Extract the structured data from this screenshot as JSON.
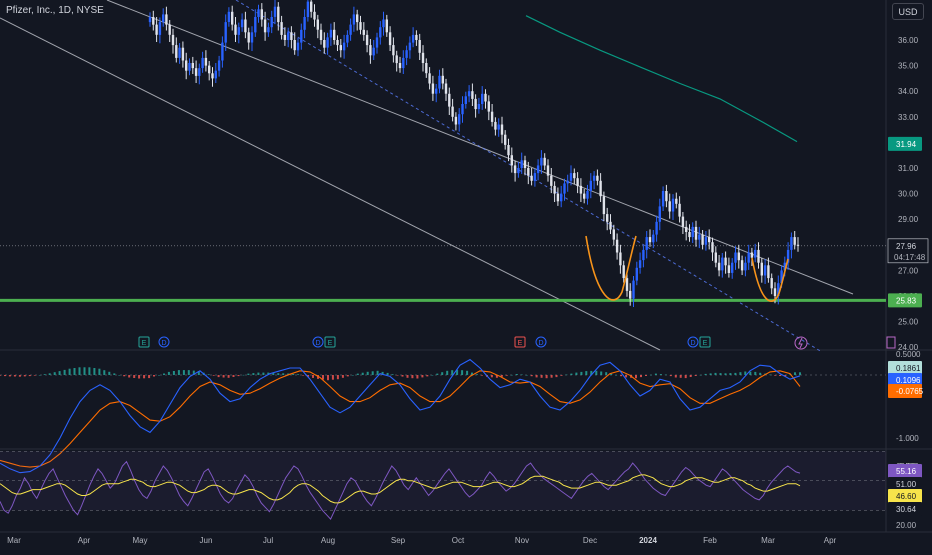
{
  "header": {
    "symbol_line": "Pfizer, Inc., 1D, NYSE",
    "currency": "USD"
  },
  "colors": {
    "bull": "#2962ff",
    "bear": "#e0e3eb",
    "channel": "#d1d4dc",
    "ma200": "#089981",
    "support": "#4caf50",
    "cup": "#f7931a",
    "macd": "#2962ff",
    "signal": "#ff6d00",
    "hist_pos": "#26a69a",
    "hist_pos_light": "#b2dfdb",
    "hist_neg": "#ef5350",
    "hist_neg_light": "#ffcdd2",
    "rsi": "#7e57c2",
    "rsi_ma": "#f7e44b"
  },
  "chart_data": [
    {
      "type": "candlestick",
      "title": "Pfizer, Inc., 1D, NYSE",
      "ylim": [
        24.0,
        36.8
      ],
      "y_ticks": [
        36,
        35,
        34,
        33,
        32,
        31,
        30,
        29,
        28,
        27,
        26,
        25,
        24
      ],
      "y_tick_labels": [
        "36.00",
        "35.00",
        "34.00",
        "33.00",
        "32.00",
        "31.00",
        "30.00",
        "29.00",
        "28.00",
        "27.00",
        "26.00",
        "25.00",
        "24.00"
      ],
      "x_tick_labels": [
        "Mar",
        "Apr",
        "May",
        "Jun",
        "Jul",
        "Aug",
        "Sep",
        "Oct",
        "Nov",
        "Dec",
        "2024",
        "Feb",
        "Mar",
        "Apr"
      ],
      "last_price": "27.96",
      "countdown": "04:17:48",
      "ma200_label": "31.94",
      "support_level": 25.83,
      "support_label": "25.83",
      "closes": [
        36.9,
        36.6,
        36.2,
        36.7,
        37.0,
        36.6,
        36.2,
        35.8,
        35.3,
        35.7,
        35.2,
        34.8,
        35.1,
        34.9,
        34.6,
        34.9,
        35.3,
        35.0,
        34.7,
        34.5,
        34.8,
        35.2,
        35.9,
        36.7,
        37.1,
        36.6,
        36.2,
        36.5,
        36.8,
        36.3,
        35.9,
        36.3,
        36.9,
        37.2,
        36.8,
        36.3,
        36.5,
        36.9,
        37.3,
        36.7,
        36.2,
        36.0,
        36.3,
        36.0,
        35.6,
        35.9,
        36.4,
        36.9,
        37.5,
        37.1,
        36.8,
        36.4,
        36.0,
        35.7,
        36.1,
        36.4,
        36.0,
        35.8,
        35.6,
        35.9,
        36.2,
        36.6,
        37.0,
        36.7,
        36.4,
        36.2,
        35.8,
        35.4,
        35.7,
        36.1,
        36.5,
        36.8,
        36.3,
        35.8,
        35.4,
        35.1,
        34.9,
        35.3,
        35.6,
        35.9,
        36.2,
        36.0,
        35.5,
        35.1,
        34.7,
        34.3,
        33.9,
        34.1,
        34.6,
        34.3,
        33.9,
        33.4,
        33.0,
        32.7,
        33.1,
        33.5,
        33.8,
        34.0,
        33.7,
        33.3,
        33.5,
        33.9,
        33.6,
        33.2,
        32.8,
        32.5,
        32.7,
        32.3,
        31.9,
        31.5,
        31.1,
        30.8,
        31.0,
        31.3,
        31.0,
        30.7,
        30.5,
        30.8,
        31.1,
        31.4,
        31.1,
        30.7,
        30.3,
        30.0,
        29.7,
        30.0,
        30.4,
        30.5,
        30.8,
        30.6,
        30.3,
        30.0,
        29.8,
        30.1,
        30.5,
        30.7,
        30.5,
        29.9,
        29.2,
        28.9,
        28.6,
        28.2,
        27.7,
        27.2,
        26.7,
        26.2,
        25.9,
        26.6,
        27.1,
        27.4,
        27.8,
        28.3,
        28.1,
        28.4,
        28.9,
        29.5,
        30.1,
        29.7,
        29.3,
        29.8,
        29.6,
        29.1,
        28.7,
        28.5,
        28.3,
        28.7,
        28.2,
        28.4,
        28.0,
        28.3,
        28.1,
        27.7,
        27.3,
        27.0,
        27.5,
        27.2,
        26.9,
        27.3,
        27.7,
        27.4,
        27.0,
        27.3,
        27.7,
        27.5,
        27.8,
        27.3,
        26.8,
        27.2,
        26.7,
        26.3,
        26.0,
        26.5,
        27.0,
        27.3,
        27.8,
        28.3,
        28.0,
        27.96
      ],
      "ma200": [
        {
          "x": 526,
          "price": 36.95
        },
        {
          "x": 560,
          "price": 36.3
        },
        {
          "x": 600,
          "price": 35.6
        },
        {
          "x": 640,
          "price": 34.95
        },
        {
          "x": 680,
          "price": 34.3
        },
        {
          "x": 720,
          "price": 33.7
        },
        {
          "x": 760,
          "price": 32.85
        },
        {
          "x": 797,
          "price": 32.03
        }
      ],
      "events": [
        {
          "letter": "E",
          "kind": "earnings"
        },
        {
          "letter": "D",
          "kind": "dividend"
        },
        {
          "letter": "D",
          "kind": "dividend"
        },
        {
          "letter": "E",
          "kind": "earnings"
        },
        {
          "letter": "E",
          "kind": "earnings"
        },
        {
          "letter": "D",
          "kind": "dividend"
        },
        {
          "letter": "D",
          "kind": "dividend"
        },
        {
          "letter": "E",
          "kind": "earnings"
        }
      ]
    },
    {
      "type": "line",
      "title": "MACD",
      "ylim": [
        -1.7,
        0.55
      ],
      "y_tick_labels": [
        "0.5000",
        "-1.000",
        "-1.500"
      ],
      "y_tick_values": [
        0.5,
        -1.0,
        -1.5
      ],
      "values_labels": {
        "histogram": "0.1861",
        "macd": "0.1096",
        "signal": "-0.0765"
      },
      "macd": [
        -1.45,
        -1.55,
        -1.62,
        -1.6,
        -1.5,
        -1.3,
        -1.0,
        -0.65,
        -0.35,
        -0.15,
        -0.05,
        -0.15,
        -0.35,
        -0.6,
        -0.8,
        -0.9,
        -0.7,
        -0.4,
        -0.1,
        0.1,
        0.2,
        0.05,
        -0.2,
        -0.35,
        -0.3,
        -0.1,
        0.05,
        0.15,
        0.2,
        0.25,
        0.25,
        0.05,
        -0.2,
        -0.45,
        -0.55,
        -0.45,
        -0.25,
        -0.05,
        0.15,
        0.1,
        -0.05,
        -0.3,
        -0.5,
        -0.45,
        -0.25,
        0.05,
        0.3,
        0.4,
        0.25,
        0.05,
        -0.1,
        -0.05,
        0.05,
        0.0,
        -0.25,
        -0.45,
        -0.5,
        -0.35,
        -0.15,
        0.1,
        0.3,
        0.35,
        0.2,
        -0.05,
        -0.25,
        -0.15,
        0.05,
        0.0,
        -0.3,
        -0.5,
        -0.45,
        -0.3,
        -0.15,
        -0.1,
        0.0,
        0.2,
        0.3,
        0.28,
        0.15,
        0.05,
        0.11
      ],
      "signal": [
        -1.4,
        -1.45,
        -1.5,
        -1.52,
        -1.5,
        -1.42,
        -1.28,
        -1.1,
        -0.9,
        -0.7,
        -0.5,
        -0.38,
        -0.35,
        -0.42,
        -0.55,
        -0.68,
        -0.7,
        -0.62,
        -0.45,
        -0.25,
        -0.08,
        0.0,
        -0.05,
        -0.15,
        -0.22,
        -0.2,
        -0.12,
        -0.02,
        0.07,
        0.14,
        0.2,
        0.18,
        0.08,
        -0.08,
        -0.25,
        -0.35,
        -0.35,
        -0.28,
        -0.15,
        -0.05,
        -0.02,
        -0.1,
        -0.25,
        -0.35,
        -0.35,
        -0.25,
        -0.08,
        0.1,
        0.2,
        0.18,
        0.1,
        0.0,
        -0.02,
        0.0,
        -0.08,
        -0.22,
        -0.35,
        -0.38,
        -0.32,
        -0.18,
        0.0,
        0.15,
        0.2,
        0.12,
        -0.02,
        -0.08,
        -0.05,
        -0.03,
        -0.12,
        -0.28,
        -0.38,
        -0.38,
        -0.3,
        -0.22,
        -0.15,
        -0.05,
        0.08,
        0.18,
        0.2,
        0.15,
        -0.08
      ]
    },
    {
      "type": "line",
      "title": "RSI",
      "ylim": [
        18,
        64
      ],
      "y_tick_labels": [
        "60.00",
        "20.00"
      ],
      "y_tick_values": [
        60,
        20
      ],
      "bands": [
        70,
        50,
        30
      ],
      "values_labels": {
        "rsi": "55.16",
        "level": "51.00",
        "rsi_ma": "46.60",
        "low": "30.64"
      },
      "rsi": [
        36,
        30,
        28,
        33,
        40,
        45,
        52,
        48,
        42,
        38,
        44,
        50,
        55,
        58,
        52,
        46,
        40,
        35,
        30,
        27,
        33,
        40,
        47,
        53,
        58,
        55,
        50,
        45,
        48,
        54,
        60,
        63,
        57,
        50,
        44,
        40,
        38,
        43,
        50,
        55,
        60,
        57,
        52,
        46,
        40,
        36,
        33,
        38,
        44,
        50,
        56,
        58,
        53,
        47,
        41,
        37,
        35,
        38,
        44,
        49,
        54,
        51,
        46,
        40,
        35,
        32,
        29,
        34,
        40,
        46,
        52,
        56,
        60,
        58,
        53,
        47,
        42,
        38,
        34,
        30,
        27,
        24,
        30,
        36,
        42,
        48,
        52,
        50,
        45,
        40,
        36,
        33,
        38,
        44,
        50,
        55,
        60,
        57,
        52,
        47,
        44,
        48,
        52,
        48,
        44,
        40,
        43,
        47,
        51,
        55,
        58,
        54,
        50,
        46,
        42,
        39,
        41,
        44,
        47,
        52,
        56,
        53,
        49,
        46,
        43,
        45,
        48,
        52,
        56,
        60,
        62,
        58,
        55,
        52,
        50,
        48,
        46,
        44,
        42,
        40,
        38,
        42,
        46,
        50,
        53,
        55,
        52,
        49,
        46,
        44,
        47,
        50,
        53,
        56,
        58,
        62,
        59,
        55,
        51,
        48,
        45,
        43,
        41,
        40,
        44,
        48,
        52,
        56,
        59,
        57,
        54,
        51,
        49,
        47,
        46,
        50,
        54,
        58,
        56,
        53,
        50,
        47,
        44,
        42,
        40,
        38,
        37,
        40,
        45,
        49,
        52,
        55,
        58,
        60,
        58,
        56,
        55.16
      ],
      "rsi_ma": [
        48,
        46,
        44,
        42,
        41,
        41,
        42,
        43,
        44,
        44,
        44,
        45,
        46,
        47,
        48,
        48,
        47,
        45,
        43,
        41,
        40,
        40,
        41,
        43,
        45,
        47,
        48,
        48,
        48,
        48,
        49,
        50,
        51,
        51,
        50,
        49,
        47,
        46,
        46,
        47,
        48,
        49,
        49,
        48,
        47,
        45,
        43,
        42,
        42,
        43,
        44,
        46,
        47,
        47,
        46,
        44,
        42,
        41,
        41,
        42,
        43,
        44,
        44,
        43,
        42,
        40,
        38,
        37,
        37,
        38,
        40,
        42,
        45,
        47,
        48,
        48,
        47,
        45,
        43,
        40,
        38,
        36,
        35,
        35,
        36,
        38,
        40,
        42,
        43,
        43,
        42,
        41,
        41,
        42,
        44,
        46,
        48,
        50,
        51,
        51,
        50,
        50,
        49,
        48,
        47,
        46,
        45,
        45,
        46,
        47,
        48,
        49,
        49,
        49,
        48,
        47,
        46,
        46,
        46,
        47,
        48,
        49,
        49,
        48,
        47,
        46,
        46,
        47,
        48,
        50,
        52,
        53,
        53,
        53,
        52,
        51,
        50,
        49,
        47,
        46,
        45,
        45,
        45,
        46,
        47,
        48,
        49,
        49,
        48,
        47,
        47,
        47,
        48,
        49,
        50,
        52,
        53,
        54,
        54,
        53,
        52,
        50,
        48,
        47,
        46,
        46,
        47,
        48,
        50,
        51,
        52,
        52,
        52,
        51,
        50,
        49,
        49,
        50,
        51,
        52,
        52,
        51,
        50,
        48,
        47,
        45,
        44,
        43,
        43,
        44,
        45,
        46,
        47,
        48,
        48,
        48,
        46.6
      ]
    }
  ]
}
